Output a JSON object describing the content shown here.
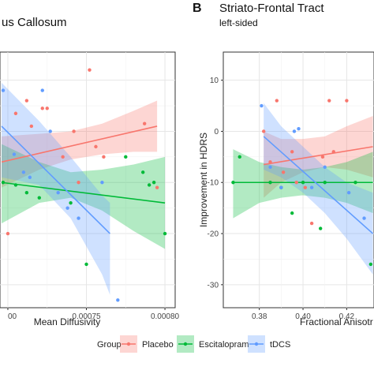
{
  "colors": {
    "placebo": "#F8766D",
    "escitalopram": "#00BA38",
    "tdcs": "#619CFF"
  },
  "legend": {
    "title": "Group",
    "items": [
      {
        "key": "placebo",
        "label": "Placebo"
      },
      {
        "key": "escitalopram",
        "label": "Escitalopram"
      },
      {
        "key": "tdcs",
        "label": "tDCS"
      }
    ]
  },
  "chart_data": [
    {
      "type": "scatter",
      "title": "us Callosum",
      "subtitle": "",
      "xlabel": "Mean Diffusivity",
      "ylabel": "",
      "xlim": [
        0.000695,
        0.0008065
      ],
      "ylim": [
        -34.5,
        15.5
      ],
      "xticks": [
        0.0007,
        0.00075,
        0.0008
      ],
      "xtick_labels": [
        "00",
        "0.00075",
        "0.00080"
      ],
      "grid": true,
      "series": [
        {
          "name": "Placebo",
          "key": "placebo",
          "points": [
            [
              0.0007,
              -20
            ],
            [
              0.000705,
              3.5
            ],
            [
              0.000712,
              6
            ],
            [
              0.000715,
              1
            ],
            [
              0.000722,
              4.5
            ],
            [
              0.000725,
              4.5
            ],
            [
              0.000735,
              -5
            ],
            [
              0.000742,
              0
            ],
            [
              0.000745,
              -10
            ],
            [
              0.000752,
              12
            ],
            [
              0.000756,
              -3
            ],
            [
              0.000761,
              -5
            ],
            [
              0.000787,
              1.5
            ],
            [
              0.000795,
              -11
            ]
          ],
          "fit": [
            [
              0.000696,
              -6
            ],
            [
              0.000795,
              1
            ]
          ],
          "band_upper": [
            [
              0.000696,
              -1
            ],
            [
              0.00072,
              -0.5
            ],
            [
              0.00074,
              0
            ],
            [
              0.00076,
              1.5
            ],
            [
              0.00078,
              4
            ],
            [
              0.000795,
              6
            ]
          ],
          "band_lower": [
            [
              0.000696,
              -11
            ],
            [
              0.00072,
              -7.5
            ],
            [
              0.00074,
              -5.5
            ],
            [
              0.00076,
              -4.5
            ],
            [
              0.00078,
              -4
            ],
            [
              0.000795,
              -4
            ]
          ]
        },
        {
          "name": "Escitalopram",
          "key": "escitalopram",
          "points": [
            [
              0.000697,
              -10
            ],
            [
              0.000705,
              -10.5
            ],
            [
              0.000712,
              -12
            ],
            [
              0.00072,
              -13
            ],
            [
              0.00074,
              -14
            ],
            [
              0.00075,
              -26
            ],
            [
              0.000775,
              -5
            ],
            [
              0.000786,
              -8
            ],
            [
              0.00079,
              -10.5
            ],
            [
              0.000793,
              -10
            ],
            [
              0.0008,
              -20
            ]
          ],
          "fit": [
            [
              0.000696,
              -10
            ],
            [
              0.0008,
              -14
            ]
          ],
          "band_upper": [
            [
              0.000696,
              -2.5
            ],
            [
              0.00072,
              -6
            ],
            [
              0.00074,
              -8
            ],
            [
              0.00076,
              -7.5
            ],
            [
              0.00078,
              -6.5
            ],
            [
              0.0008,
              -5
            ]
          ],
          "band_lower": [
            [
              0.000696,
              -18
            ],
            [
              0.00072,
              -14
            ],
            [
              0.00074,
              -13
            ],
            [
              0.00076,
              -15.5
            ],
            [
              0.00078,
              -19.5
            ],
            [
              0.0008,
              -23
            ]
          ]
        },
        {
          "name": "tDCS",
          "key": "tdcs",
          "points": [
            [
              0.000697,
              8
            ],
            [
              0.000704,
              -4.5
            ],
            [
              0.00071,
              -8
            ],
            [
              0.000714,
              -9
            ],
            [
              0.000722,
              8
            ],
            [
              0.000727,
              0
            ],
            [
              0.000732,
              -12
            ],
            [
              0.000738,
              -15
            ],
            [
              0.000745,
              -17
            ],
            [
              0.00076,
              -10
            ],
            [
              0.00077,
              -33
            ]
          ],
          "fit": [
            [
              0.000696,
              1
            ],
            [
              0.000765,
              -20
            ]
          ],
          "band_upper": [
            [
              0.000696,
              9.5
            ],
            [
              0.00072,
              2
            ],
            [
              0.00074,
              -5
            ],
            [
              0.00076,
              -12.5
            ],
            [
              0.000765,
              -14
            ]
          ],
          "band_lower": [
            [
              0.000696,
              -9
            ],
            [
              0.00072,
              -10.5
            ],
            [
              0.00074,
              -17
            ],
            [
              0.00076,
              -28
            ],
            [
              0.000765,
              -32
            ]
          ]
        }
      ]
    },
    {
      "type": "scatter",
      "panel_letter": "B",
      "title": "Striato-Frontal Tract",
      "subtitle": "left-sided",
      "xlabel": "Fractional Anisotr",
      "ylabel": "Improvement in HDRS",
      "xlim": [
        0.3635,
        0.4325
      ],
      "ylim": [
        -34.5,
        15.5
      ],
      "xticks": [
        0.38,
        0.4,
        0.42
      ],
      "xtick_labels": [
        "0.38",
        "0.40",
        "0.42"
      ],
      "yticks": [
        10,
        0,
        -10,
        -20,
        -30
      ],
      "ytick_labels": [
        "10",
        "0",
        "-10",
        "-20",
        "-30"
      ],
      "grid": true,
      "series": [
        {
          "name": "Placebo",
          "key": "placebo",
          "points": [
            [
              0.382,
              0
            ],
            [
              0.385,
              -6
            ],
            [
              0.388,
              6
            ],
            [
              0.391,
              -8
            ],
            [
              0.395,
              -4
            ],
            [
              0.397,
              -10
            ],
            [
              0.401,
              -11
            ],
            [
              0.404,
              -18
            ],
            [
              0.409,
              -5
            ],
            [
              0.412,
              6
            ],
            [
              0.414,
              -4
            ],
            [
              0.42,
              6
            ]
          ],
          "fit": [
            [
              0.382,
              -6.5
            ],
            [
              0.432,
              -3
            ]
          ],
          "band_upper": [
            [
              0.382,
              0
            ],
            [
              0.39,
              -1.5
            ],
            [
              0.4,
              -1.5
            ],
            [
              0.41,
              -1
            ],
            [
              0.42,
              1
            ],
            [
              0.432,
              3
            ]
          ],
          "band_lower": [
            [
              0.382,
              -13
            ],
            [
              0.39,
              -10
            ],
            [
              0.4,
              -8
            ],
            [
              0.41,
              -7
            ],
            [
              0.42,
              -7.5
            ],
            [
              0.432,
              -9
            ]
          ]
        },
        {
          "name": "Escitalopram",
          "key": "escitalopram",
          "points": [
            [
              0.368,
              -10
            ],
            [
              0.371,
              -5
            ],
            [
              0.385,
              -10
            ],
            [
              0.39,
              -11
            ],
            [
              0.395,
              -16
            ],
            [
              0.4,
              -10
            ],
            [
              0.408,
              -19
            ],
            [
              0.41,
              -10
            ],
            [
              0.424,
              -10
            ],
            [
              0.431,
              -26
            ]
          ],
          "fit": [
            [
              0.368,
              -10
            ],
            [
              0.432,
              -10
            ]
          ],
          "band_upper": [
            [
              0.368,
              -3.5
            ],
            [
              0.38,
              -6
            ],
            [
              0.39,
              -7
            ],
            [
              0.4,
              -7.5
            ],
            [
              0.41,
              -7
            ],
            [
              0.42,
              -6
            ],
            [
              0.432,
              -4
            ]
          ],
          "band_lower": [
            [
              0.368,
              -17
            ],
            [
              0.38,
              -14
            ],
            [
              0.39,
              -13
            ],
            [
              0.4,
              -12.5
            ],
            [
              0.41,
              -13
            ],
            [
              0.42,
              -14
            ],
            [
              0.432,
              -16
            ]
          ]
        },
        {
          "name": "tDCS",
          "key": "tdcs",
          "points": [
            [
              0.381,
              5
            ],
            [
              0.385,
              -7
            ],
            [
              0.39,
              -11
            ],
            [
              0.396,
              0
            ],
            [
              0.398,
              0.5
            ],
            [
              0.404,
              -11
            ],
            [
              0.41,
              -7
            ],
            [
              0.421,
              -12
            ],
            [
              0.428,
              -17
            ]
          ],
          "fit": [
            [
              0.382,
              -1
            ],
            [
              0.432,
              -20
            ]
          ],
          "band_upper": [
            [
              0.382,
              5.5
            ],
            [
              0.39,
              1
            ],
            [
              0.4,
              -3
            ],
            [
              0.41,
              -7
            ],
            [
              0.42,
              -10
            ],
            [
              0.432,
              -12
            ]
          ],
          "band_lower": [
            [
              0.382,
              -7.5
            ],
            [
              0.39,
              -9
            ],
            [
              0.4,
              -12
            ],
            [
              0.41,
              -16
            ],
            [
              0.42,
              -21
            ],
            [
              0.432,
              -28
            ]
          ]
        }
      ]
    }
  ]
}
